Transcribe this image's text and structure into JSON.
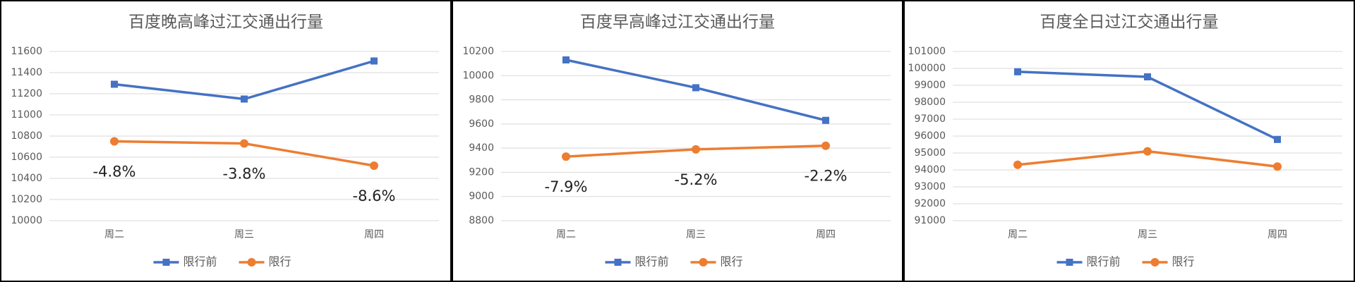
{
  "chart_data": [
    {
      "type": "line",
      "title": "百度晚高峰过江交通出行量",
      "categories": [
        "周二",
        "周三",
        "周四"
      ],
      "series": [
        {
          "name": "限行前",
          "color": "#4472c4",
          "marker": "square",
          "values": [
            11290,
            11150,
            11510
          ]
        },
        {
          "name": "限行",
          "color": "#ed7d31",
          "marker": "circle",
          "values": [
            10750,
            10730,
            10520
          ]
        }
      ],
      "annotations": [
        "-4.8%",
        "-3.8%",
        "-8.6%"
      ],
      "ylim": [
        10000,
        11600
      ],
      "yticks": [
        10000,
        10200,
        10400,
        10600,
        10800,
        11000,
        11200,
        11400,
        11600
      ],
      "grid": true,
      "legend": "bottom"
    },
    {
      "type": "line",
      "title": "百度早高峰过江交通出行量",
      "categories": [
        "周二",
        "周三",
        "周四"
      ],
      "series": [
        {
          "name": "限行前",
          "color": "#4472c4",
          "marker": "square",
          "values": [
            10130,
            9900,
            9630
          ]
        },
        {
          "name": "限行",
          "color": "#ed7d31",
          "marker": "circle",
          "values": [
            9330,
            9390,
            9420
          ]
        }
      ],
      "annotations": [
        "-7.9%",
        "-5.2%",
        "-2.2%"
      ],
      "ylim": [
        8800,
        10200
      ],
      "yticks": [
        8800,
        9000,
        9200,
        9400,
        9600,
        9800,
        10000,
        10200
      ],
      "grid": true,
      "legend": "bottom"
    },
    {
      "type": "line",
      "title": "百度全日过江交通出行量",
      "categories": [
        "周二",
        "周三",
        "周四"
      ],
      "series": [
        {
          "name": "限行前",
          "color": "#4472c4",
          "marker": "square",
          "values": [
            99800,
            99500,
            95800
          ]
        },
        {
          "name": "限行",
          "color": "#ed7d31",
          "marker": "circle",
          "values": [
            94300,
            95100,
            94200
          ]
        }
      ],
      "ylim": [
        91000,
        101000
      ],
      "yticks": [
        91000,
        92000,
        93000,
        94000,
        95000,
        96000,
        97000,
        98000,
        99000,
        100000,
        101000
      ],
      "grid": true,
      "legend": "bottom"
    }
  ]
}
